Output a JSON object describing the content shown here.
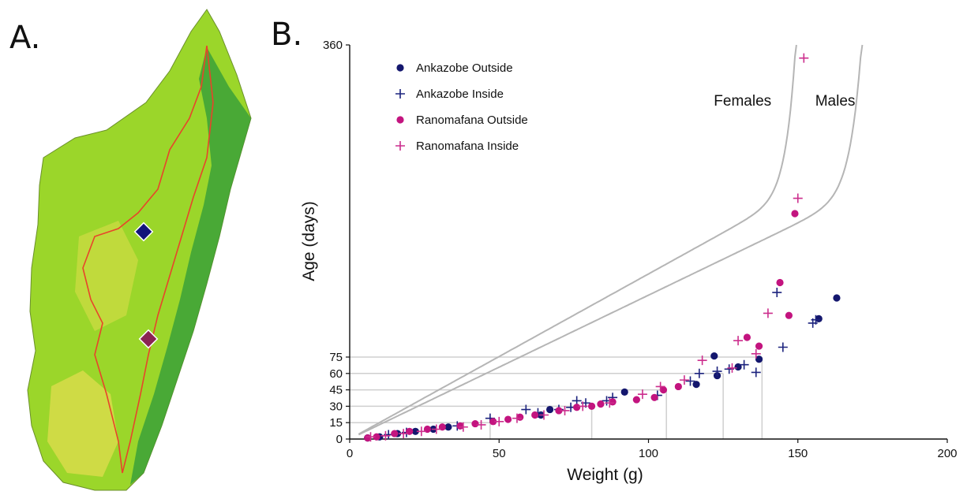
{
  "panel_a": {
    "letter": "A.",
    "colors": {
      "land": "#9bd62a",
      "forest": "#2e9a3b",
      "dry": "#d8dc4a",
      "outline": "#e8442a",
      "site_ankazobe": "#12157a",
      "site_ranomafana": "#8a2452"
    }
  },
  "panel_b": {
    "letter": "B."
  },
  "chart_data": {
    "type": "scatter",
    "xlabel": "Weight (g)",
    "ylabel": "Age (days)",
    "xlim": [
      0,
      200
    ],
    "ylim": [
      0,
      360
    ],
    "x_ticks": [
      0,
      50,
      100,
      150,
      200
    ],
    "y_ticks": [
      0,
      15,
      30,
      45,
      60,
      75,
      360
    ],
    "grid": false,
    "legend_position": "top-left",
    "colors": {
      "ankazobe": "#14176e",
      "ranomafana": "#c3147f",
      "curve": "#b5b5b5",
      "ref": "#cfcfcf"
    },
    "curves": [
      {
        "label": "Females",
        "asymptote": 152.5
      },
      {
        "label": "Males",
        "asymptote": 175
      }
    ],
    "reference_lines": [
      {
        "age": 15,
        "weight": 47
      },
      {
        "age": 30,
        "weight": 81
      },
      {
        "age": 45,
        "weight": 106
      },
      {
        "age": 60,
        "weight": 125
      },
      {
        "age": 75,
        "weight": 138
      }
    ],
    "series": [
      {
        "name": "Ankazobe Outside",
        "marker": "circle",
        "color": "#14176e",
        "points": [
          [
            6,
            1
          ],
          [
            10,
            2
          ],
          [
            16,
            5
          ],
          [
            22,
            7
          ],
          [
            28,
            9
          ],
          [
            33,
            11
          ],
          [
            64,
            22
          ],
          [
            67,
            27
          ],
          [
            92,
            43
          ],
          [
            122,
            76
          ],
          [
            116,
            50
          ],
          [
            123,
            58
          ],
          [
            130,
            66
          ],
          [
            137,
            73
          ],
          [
            157,
            110
          ],
          [
            163,
            129
          ]
        ]
      },
      {
        "name": "Ankazobe Inside",
        "marker": "plus",
        "color": "#1c237e",
        "points": [
          [
            13,
            4
          ],
          [
            19,
            6
          ],
          [
            36,
            12
          ],
          [
            47,
            19
          ],
          [
            59,
            27
          ],
          [
            63,
            24
          ],
          [
            70,
            27
          ],
          [
            74,
            29
          ],
          [
            76,
            35
          ],
          [
            79,
            33
          ],
          [
            86,
            35
          ],
          [
            88,
            38
          ],
          [
            103,
            40
          ],
          [
            114,
            53
          ],
          [
            117,
            60
          ],
          [
            123,
            62
          ],
          [
            127,
            64
          ],
          [
            132,
            68
          ],
          [
            143,
            134
          ],
          [
            156,
            109
          ],
          [
            155,
            106
          ],
          [
            145,
            84
          ],
          [
            136,
            61
          ]
        ]
      },
      {
        "name": "Ranomafana Outside",
        "marker": "circle",
        "color": "#c3147f",
        "points": [
          [
            6,
            1
          ],
          [
            9,
            2
          ],
          [
            15,
            5
          ],
          [
            20,
            7
          ],
          [
            26,
            9
          ],
          [
            31,
            11
          ],
          [
            37,
            12
          ],
          [
            42,
            14
          ],
          [
            48,
            16
          ],
          [
            53,
            18
          ],
          [
            57,
            20
          ],
          [
            62,
            22
          ],
          [
            70,
            26
          ],
          [
            76,
            29
          ],
          [
            81,
            30
          ],
          [
            84,
            32
          ],
          [
            88,
            34
          ],
          [
            96,
            36
          ],
          [
            102,
            38
          ],
          [
            105,
            45
          ],
          [
            110,
            48
          ],
          [
            137,
            85
          ],
          [
            133,
            93
          ],
          [
            144,
            143
          ],
          [
            147,
            113
          ],
          [
            149,
            206
          ]
        ]
      },
      {
        "name": "Ranomafana Inside",
        "marker": "plus",
        "color": "#cc2e8d",
        "points": [
          [
            7,
            2
          ],
          [
            12,
            3
          ],
          [
            18,
            5
          ],
          [
            24,
            7
          ],
          [
            29,
            9
          ],
          [
            38,
            11
          ],
          [
            44,
            13
          ],
          [
            50,
            16
          ],
          [
            56,
            19
          ],
          [
            65,
            22
          ],
          [
            72,
            26
          ],
          [
            78,
            30
          ],
          [
            87,
            33
          ],
          [
            98,
            41
          ],
          [
            104,
            48
          ],
          [
            112,
            54
          ],
          [
            118,
            72
          ],
          [
            130,
            90
          ],
          [
            140,
            115
          ],
          [
            150,
            220
          ],
          [
            152,
            348
          ],
          [
            136,
            78
          ],
          [
            128,
            65
          ]
        ]
      }
    ]
  }
}
